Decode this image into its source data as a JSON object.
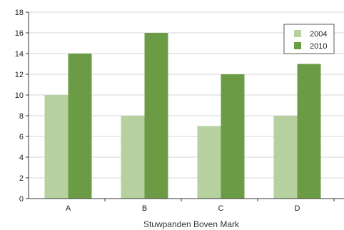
{
  "chart_data": {
    "type": "bar",
    "categories": [
      "A",
      "B",
      "C",
      "D"
    ],
    "series": [
      {
        "name": "2004",
        "values": [
          10,
          8,
          7,
          8
        ],
        "color": "#b6d0a0"
      },
      {
        "name": "2010",
        "values": [
          14,
          16,
          12,
          13
        ],
        "color": "#6b9c45"
      }
    ],
    "title": "",
    "xlabel": "Stuwpanden Boven Mark",
    "ylabel": "",
    "ylim": [
      0,
      18
    ],
    "yticks": [
      0,
      2,
      4,
      6,
      8,
      10,
      12,
      14,
      16,
      18
    ],
    "grid": true,
    "legend_position": "top-right"
  }
}
